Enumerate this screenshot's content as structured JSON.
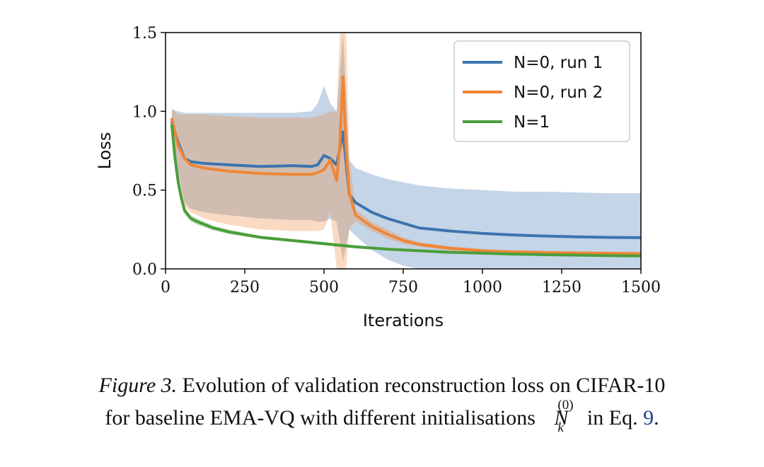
{
  "chart_data": {
    "type": "line",
    "xlabel": "Iterations",
    "ylabel": "Loss",
    "xlim": [
      0,
      1500
    ],
    "ylim": [
      0,
      1.5
    ],
    "xticks": [
      0,
      250,
      500,
      750,
      1000,
      1250,
      1500
    ],
    "xtick_labels": [
      "0",
      "250",
      "500",
      "750",
      "1000",
      "1250",
      "1500"
    ],
    "yticks": [
      0.0,
      0.5,
      1.0,
      1.5
    ],
    "ytick_labels": [
      "0.0",
      "0.5",
      "1.0",
      "1.5"
    ],
    "grid": false,
    "legend_position": "top-right",
    "series": [
      {
        "name": "N=0, run 1",
        "color": "#3b75af",
        "x": [
          20,
          40,
          60,
          80,
          120,
          200,
          300,
          400,
          460,
          480,
          500,
          520,
          540,
          560,
          580,
          600,
          650,
          700,
          750,
          800,
          900,
          1000,
          1100,
          1200,
          1300,
          1400,
          1500
        ],
        "values": [
          0.93,
          0.8,
          0.7,
          0.68,
          0.67,
          0.66,
          0.65,
          0.655,
          0.65,
          0.66,
          0.72,
          0.7,
          0.66,
          0.87,
          0.47,
          0.42,
          0.36,
          0.32,
          0.29,
          0.26,
          0.24,
          0.225,
          0.215,
          0.208,
          0.203,
          0.2,
          0.198
        ],
        "band_upper": [
          1.01,
          1.0,
          0.99,
          0.99,
          0.99,
          0.99,
          0.99,
          0.99,
          1.0,
          1.05,
          1.16,
          1.05,
          1.0,
          1.5,
          0.69,
          0.64,
          0.6,
          0.57,
          0.55,
          0.53,
          0.51,
          0.5,
          0.49,
          0.49,
          0.485,
          0.48,
          0.48
        ],
        "band_lower": [
          0.86,
          0.62,
          0.42,
          0.38,
          0.36,
          0.34,
          0.32,
          0.31,
          0.31,
          0.3,
          0.3,
          0.32,
          0.3,
          0.05,
          0.25,
          0.21,
          0.12,
          0.06,
          0.02,
          0.0,
          0.0,
          0.0,
          0.0,
          0.0,
          0.0,
          0.0,
          0.0
        ]
      },
      {
        "name": "N=0, run 2",
        "color": "#ef8636",
        "x": [
          20,
          40,
          60,
          80,
          120,
          200,
          300,
          400,
          460,
          480,
          500,
          520,
          540,
          550,
          560,
          570,
          580,
          600,
          650,
          700,
          750,
          800,
          900,
          1000,
          1100,
          1200,
          1300,
          1400,
          1500
        ],
        "values": [
          0.95,
          0.78,
          0.7,
          0.66,
          0.64,
          0.62,
          0.605,
          0.6,
          0.6,
          0.61,
          0.63,
          0.69,
          0.56,
          0.8,
          1.22,
          0.75,
          0.48,
          0.34,
          0.27,
          0.22,
          0.18,
          0.155,
          0.13,
          0.115,
          0.108,
          0.104,
          0.101,
          0.099,
          0.097
        ],
        "band_upper": [
          1.02,
          0.98,
          0.98,
          0.98,
          0.98,
          0.97,
          0.96,
          0.96,
          0.96,
          0.97,
          0.98,
          1.0,
          1.0,
          1.5,
          1.5,
          1.5,
          0.7,
          0.38,
          0.3,
          0.25,
          0.2,
          0.17,
          0.145,
          0.125,
          0.115,
          0.11,
          0.105,
          0.102,
          0.1
        ],
        "band_lower": [
          0.88,
          0.58,
          0.4,
          0.36,
          0.32,
          0.28,
          0.25,
          0.24,
          0.24,
          0.24,
          0.25,
          0.36,
          0.0,
          0.0,
          0.0,
          0.0,
          0.26,
          0.3,
          0.24,
          0.19,
          0.16,
          0.14,
          0.115,
          0.105,
          0.1,
          0.097,
          0.095,
          0.093,
          0.092
        ]
      },
      {
        "name": "N=1",
        "color": "#4a9e3b",
        "x": [
          20,
          30,
          40,
          50,
          60,
          80,
          100,
          150,
          200,
          300,
          400,
          500,
          600,
          700,
          800,
          900,
          1000,
          1100,
          1200,
          1300,
          1400,
          1500
        ],
        "values": [
          0.91,
          0.7,
          0.55,
          0.45,
          0.37,
          0.32,
          0.3,
          0.26,
          0.235,
          0.2,
          0.18,
          0.16,
          0.14,
          0.125,
          0.115,
          0.105,
          0.1,
          0.094,
          0.09,
          0.087,
          0.084,
          0.082
        ],
        "band_upper": [
          0.93,
          0.72,
          0.57,
          0.47,
          0.39,
          0.34,
          0.32,
          0.275,
          0.25,
          0.21,
          0.19,
          0.17,
          0.15,
          0.133,
          0.122,
          0.112,
          0.106,
          0.1,
          0.096,
          0.093,
          0.09,
          0.088
        ],
        "band_lower": [
          0.89,
          0.68,
          0.53,
          0.43,
          0.35,
          0.3,
          0.28,
          0.245,
          0.22,
          0.19,
          0.17,
          0.15,
          0.13,
          0.117,
          0.108,
          0.098,
          0.094,
          0.088,
          0.084,
          0.081,
          0.078,
          0.076
        ]
      }
    ]
  },
  "caption": {
    "figure_label": "Figure 3.",
    "line1_text": "Evolution of validation reconstruction loss on CIFAR-10",
    "line2_text": "for baseline EMA-VQ with different initialisations",
    "symbol": "N",
    "symbol_superscript": "(0)",
    "symbol_subscript": "k",
    "eq_prefix": "in Eq.",
    "eq_ref": "9",
    "end": "."
  }
}
